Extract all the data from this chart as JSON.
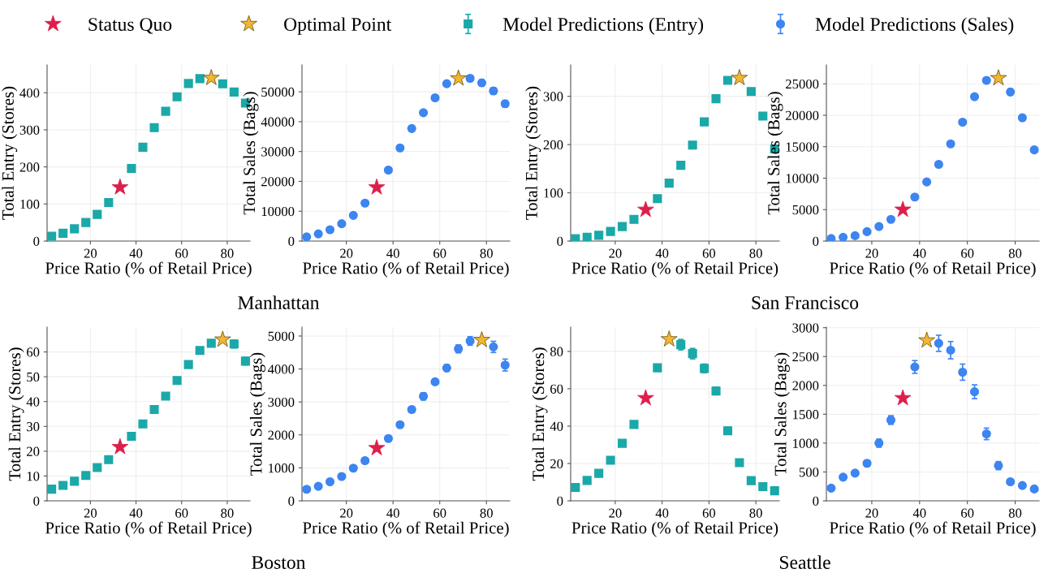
{
  "chart_data": [
    {
      "type": "scatter",
      "xlabel": "Price Ratio (% of Retail Price)",
      "ylabel": "Total Entry (Stores)",
      "annotations": [
        "Manhattan"
      ],
      "x": [
        3,
        8,
        13,
        18,
        23,
        28,
        33,
        38,
        43,
        48,
        53,
        58,
        63,
        68,
        73,
        78,
        83,
        88
      ],
      "xlim": [
        1,
        90
      ],
      "xticks": [
        20,
        40,
        60,
        80
      ],
      "ylim": [
        0,
        475
      ],
      "yticks": [
        0,
        100,
        200,
        300,
        400
      ],
      "grid": true,
      "legend": "top",
      "series": [
        {
          "name": "Status Quo",
          "color": "#dc1f4b",
          "marker": "star",
          "x": [
            33
          ],
          "values": [
            145
          ]
        },
        {
          "name": "Optimal Point",
          "color": "#f2b631",
          "marker": "star",
          "x": [
            73
          ],
          "values": [
            440
          ]
        },
        {
          "name": "Model Predictions (Entry)",
          "color": "#1ba8a8",
          "marker": "square",
          "values": [
            13,
            21,
            33,
            50,
            72,
            104,
            null,
            196,
            253,
            306,
            350,
            389,
            425,
            438,
            null,
            424,
            402,
            372
          ],
          "errors": [
            2,
            2,
            2,
            2,
            2,
            2,
            null,
            3,
            3,
            3,
            3,
            3,
            4,
            6,
            null,
            7,
            7,
            7
          ]
        }
      ]
    },
    {
      "type": "scatter",
      "xlabel": "Price Ratio (% of Retail Price)",
      "ylabel": "Total Sales (Bags)",
      "x": [
        3,
        8,
        13,
        18,
        23,
        28,
        33,
        38,
        43,
        48,
        53,
        58,
        63,
        68,
        73,
        78,
        83,
        88
      ],
      "xlim": [
        1,
        90
      ],
      "xticks": [
        20,
        40,
        60,
        80
      ],
      "ylim": [
        0,
        59000
      ],
      "yticks": [
        0,
        10000,
        20000,
        30000,
        40000,
        50000
      ],
      "grid": true,
      "legend": "top",
      "series": [
        {
          "name": "Status Quo",
          "color": "#dc1f4b",
          "marker": "star",
          "x": [
            33
          ],
          "values": [
            18000
          ]
        },
        {
          "name": "Optimal Point",
          "color": "#f2b631",
          "marker": "star",
          "x": [
            68
          ],
          "values": [
            54500
          ]
        },
        {
          "name": "Model Predictions (Sales)",
          "color": "#3d85f0",
          "marker": "circle",
          "values": [
            1400,
            2400,
            3800,
            5800,
            8600,
            12700,
            null,
            23800,
            31200,
            37700,
            43000,
            48000,
            52700,
            null,
            54500,
            53000,
            50300,
            46000
          ],
          "errors": [
            200,
            200,
            200,
            200,
            300,
            300,
            null,
            300,
            400,
            400,
            500,
            700,
            700,
            null,
            1000,
            1000,
            1100,
            1100
          ]
        }
      ]
    },
    {
      "type": "scatter",
      "xlabel": "Price Ratio (% of Retail Price)",
      "ylabel": "Total Entry (Stores)",
      "annotations": [
        "San Francisco"
      ],
      "x": [
        3,
        8,
        13,
        18,
        23,
        28,
        33,
        38,
        43,
        48,
        53,
        58,
        63,
        68,
        73,
        78,
        83,
        88
      ],
      "xlim": [
        1,
        90
      ],
      "xticks": [
        20,
        40,
        60,
        80
      ],
      "ylim": [
        0,
        365
      ],
      "yticks": [
        0,
        100,
        200,
        300
      ],
      "grid": true,
      "legend": "top",
      "series": [
        {
          "name": "Status Quo",
          "color": "#dc1f4b",
          "marker": "star",
          "x": [
            33
          ],
          "values": [
            65
          ]
        },
        {
          "name": "Optimal Point",
          "color": "#f2b631",
          "marker": "star",
          "x": [
            73
          ],
          "values": [
            338
          ]
        },
        {
          "name": "Model Predictions (Entry)",
          "color": "#1ba8a8",
          "marker": "square",
          "values": [
            5,
            8,
            12,
            20,
            30,
            45,
            null,
            88,
            120,
            157,
            199,
            247,
            295,
            333,
            null,
            310,
            259,
            191
          ],
          "errors": [
            1,
            1,
            1,
            1,
            1,
            1,
            null,
            2,
            2,
            2,
            2,
            2,
            3,
            3,
            null,
            6,
            6,
            5
          ]
        }
      ]
    },
    {
      "type": "scatter",
      "xlabel": "Price Ratio (% of Retail Price)",
      "ylabel": "Total Sales (Bags)",
      "x": [
        3,
        8,
        13,
        18,
        23,
        28,
        33,
        38,
        43,
        48,
        53,
        58,
        63,
        68,
        73,
        78,
        83,
        88
      ],
      "xlim": [
        1,
        90
      ],
      "xticks": [
        20,
        40,
        60,
        80
      ],
      "ylim": [
        0,
        28000
      ],
      "yticks": [
        0,
        5000,
        10000,
        15000,
        20000,
        25000
      ],
      "grid": true,
      "legend": "top",
      "series": [
        {
          "name": "Status Quo",
          "color": "#dc1f4b",
          "marker": "star",
          "x": [
            33
          ],
          "values": [
            5000
          ]
        },
        {
          "name": "Optimal Point",
          "color": "#f2b631",
          "marker": "star",
          "x": [
            73
          ],
          "values": [
            25900
          ]
        },
        {
          "name": "Model Predictions (Sales)",
          "color": "#3d85f0",
          "marker": "circle",
          "values": [
            400,
            600,
            850,
            1500,
            2300,
            3450,
            null,
            7000,
            9400,
            12200,
            15450,
            18900,
            22950,
            25550,
            null,
            23700,
            19600,
            14500
          ],
          "errors": [
            50,
            50,
            50,
            80,
            100,
            100,
            null,
            100,
            150,
            150,
            200,
            200,
            250,
            300,
            null,
            500,
            450,
            400
          ]
        }
      ]
    },
    {
      "type": "scatter",
      "xlabel": "Price Ratio (% of Retail Price)",
      "ylabel": "Total Entry (Stores)",
      "annotations": [
        "Boston"
      ],
      "x": [
        3,
        8,
        13,
        18,
        23,
        28,
        33,
        38,
        43,
        48,
        53,
        58,
        63,
        68,
        73,
        78,
        83,
        88
      ],
      "xlim": [
        1,
        90
      ],
      "xticks": [
        20,
        40,
        60,
        80
      ],
      "ylim": [
        0,
        70
      ],
      "yticks": [
        0,
        10,
        20,
        30,
        40,
        50,
        60
      ],
      "grid": true,
      "legend": "top",
      "series": [
        {
          "name": "Status Quo",
          "color": "#dc1f4b",
          "marker": "star",
          "x": [
            33
          ],
          "values": [
            21.7
          ]
        },
        {
          "name": "Optimal Point",
          "color": "#f2b631",
          "marker": "star",
          "x": [
            78
          ],
          "values": [
            65
          ]
        },
        {
          "name": "Model Predictions (Entry)",
          "color": "#1ba8a8",
          "marker": "square",
          "values": [
            4.7,
            6.2,
            7.9,
            10.2,
            13.4,
            16.6,
            null,
            26,
            31,
            36.8,
            42.2,
            48.5,
            54.9,
            60.6,
            63.5,
            null,
            63.2,
            56.3
          ],
          "errors": [
            0.3,
            0.3,
            0.3,
            0.3,
            0.4,
            0.4,
            null,
            0.4,
            0.5,
            0.5,
            0.6,
            0.6,
            0.7,
            1.0,
            1.3,
            null,
            1.6,
            1.5
          ]
        }
      ]
    },
    {
      "type": "scatter",
      "xlabel": "Price Ratio (% of Retail Price)",
      "ylabel": "Total Sales (Bags)",
      "x": [
        3,
        8,
        13,
        18,
        23,
        28,
        33,
        38,
        43,
        48,
        53,
        58,
        63,
        68,
        73,
        78,
        83,
        88
      ],
      "xlim": [
        1,
        90
      ],
      "xticks": [
        20,
        40,
        60,
        80
      ],
      "ylim": [
        0,
        5270
      ],
      "yticks": [
        0,
        1000,
        2000,
        3000,
        4000,
        5000
      ],
      "grid": true,
      "legend": "top",
      "series": [
        {
          "name": "Status Quo",
          "color": "#dc1f4b",
          "marker": "star",
          "x": [
            33
          ],
          "values": [
            1600
          ]
        },
        {
          "name": "Optimal Point",
          "color": "#f2b631",
          "marker": "star",
          "x": [
            78
          ],
          "values": [
            4880
          ]
        },
        {
          "name": "Model Predictions (Sales)",
          "color": "#3d85f0",
          "marker": "circle",
          "values": [
            350,
            440,
            580,
            740,
            990,
            1220,
            null,
            1890,
            2310,
            2770,
            3170,
            3610,
            4030,
            4610,
            4850,
            null,
            4670,
            4120
          ],
          "errors": [
            30,
            30,
            40,
            50,
            60,
            70,
            null,
            70,
            70,
            80,
            110,
            80,
            100,
            120,
            130,
            null,
            170,
            180
          ]
        }
      ]
    },
    {
      "type": "scatter",
      "xlabel": "Price Ratio (% of Retail Price)",
      "ylabel": "Total Entry (Stores)",
      "annotations": [
        "Seattle"
      ],
      "x": [
        3,
        8,
        13,
        18,
        23,
        28,
        33,
        38,
        43,
        48,
        53,
        58,
        63,
        68,
        73,
        78,
        83,
        88
      ],
      "xlim": [
        1,
        90
      ],
      "xticks": [
        20,
        40,
        60,
        80
      ],
      "ylim": [
        0,
        93
      ],
      "yticks": [
        0,
        20,
        40,
        60,
        80
      ],
      "grid": true,
      "legend": "top",
      "series": [
        {
          "name": "Status Quo",
          "color": "#dc1f4b",
          "marker": "star",
          "x": [
            33
          ],
          "values": [
            55
          ]
        },
        {
          "name": "Optimal Point",
          "color": "#f2b631",
          "marker": "star",
          "x": [
            43
          ],
          "values": [
            86.5
          ]
        },
        {
          "name": "Model Predictions (Entry)",
          "color": "#1ba8a8",
          "marker": "square",
          "values": [
            7.2,
            10.9,
            14.7,
            21.7,
            30.8,
            40.9,
            null,
            71.2,
            null,
            83.6,
            78.8,
            70.9,
            58.8,
            37.5,
            20.4,
            10.8,
            7.6,
            5.4
          ],
          "errors": [
            0.3,
            0.4,
            0.4,
            0.5,
            0.5,
            0.6,
            null,
            0.8,
            null,
            2.8,
            2.8,
            2.3,
            2.0,
            1.9,
            0.6,
            0.5,
            0.4,
            0.4
          ]
        }
      ]
    },
    {
      "type": "scatter",
      "xlabel": "Price Ratio (% of Retail Price)",
      "ylabel": "Total Sales (Bags)",
      "x": [
        3,
        8,
        13,
        18,
        23,
        28,
        33,
        38,
        43,
        48,
        53,
        58,
        63,
        68,
        73,
        78,
        83,
        88
      ],
      "xlim": [
        1,
        90
      ],
      "xticks": [
        20,
        40,
        60,
        80
      ],
      "ylim": [
        0,
        3010
      ],
      "yticks": [
        0,
        500,
        1000,
        1500,
        2000,
        2500,
        3000
      ],
      "grid": true,
      "legend": "top",
      "series": [
        {
          "name": "Status Quo",
          "color": "#dc1f4b",
          "marker": "star",
          "x": [
            33
          ],
          "values": [
            1780
          ]
        },
        {
          "name": "Optimal Point",
          "color": "#f2b631",
          "marker": "star",
          "x": [
            43
          ],
          "values": [
            2780
          ]
        },
        {
          "name": "Model Predictions (Sales)",
          "color": "#3d85f0",
          "marker": "circle",
          "values": [
            220,
            410,
            480,
            650,
            1000,
            1400,
            null,
            2320,
            null,
            2730,
            2610,
            2230,
            1890,
            1160,
            610,
            330,
            265,
            205
          ],
          "errors": [
            15,
            40,
            40,
            55,
            70,
            75,
            null,
            110,
            null,
            140,
            150,
            140,
            120,
            100,
            70,
            30,
            20,
            20
          ]
        }
      ]
    }
  ]
}
